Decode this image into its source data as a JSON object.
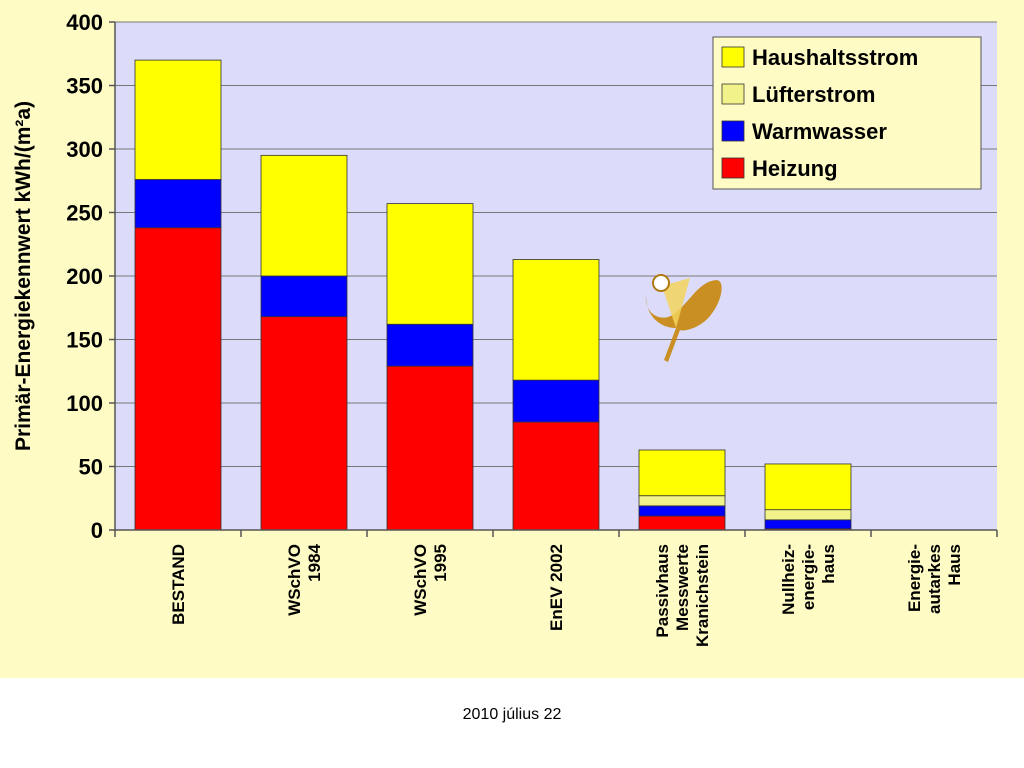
{
  "footer": {
    "date": "2010 július 22"
  },
  "colors": {
    "outer_background": "#FEFCC4",
    "plot_background": "#DCDCFA",
    "gridline": "#777777"
  },
  "icons": [
    "logo-mark"
  ],
  "chart_data": {
    "type": "bar",
    "stacked": true,
    "title": "",
    "xlabel": "",
    "ylabel": "Primär-Energiekennwert  kWh/(m²a)",
    "ylim": [
      0,
      400
    ],
    "yticks": [
      0,
      50,
      100,
      150,
      200,
      250,
      300,
      350,
      400
    ],
    "grid": true,
    "legend_position": "top-right",
    "categories": [
      [
        "BESTAND"
      ],
      [
        "WSchVO",
        "1984"
      ],
      [
        "WSchVO",
        "1995"
      ],
      [
        "EnEV 2002"
      ],
      [
        "Passivhaus",
        "Messwerte",
        "Kranichstein"
      ],
      [
        "Nullheiz-",
        "energie-",
        "haus"
      ],
      [
        "Energie-",
        "autarkes",
        "Haus"
      ]
    ],
    "series": [
      {
        "name": "Heizung",
        "color": "#FF0000",
        "values": [
          238,
          168,
          129,
          85,
          11,
          1,
          0
        ]
      },
      {
        "name": "Warmwasser",
        "color": "#0000FF",
        "values": [
          38,
          32,
          33,
          33,
          8,
          7,
          0
        ]
      },
      {
        "name": "Lüfterstrom",
        "color": "#F2F28A",
        "values": [
          0,
          0,
          0,
          0,
          8,
          8,
          0
        ]
      },
      {
        "name": "Haushaltsstrom",
        "color": "#FFFF00",
        "values": [
          94,
          95,
          95,
          95,
          36,
          36,
          0
        ]
      }
    ],
    "legend_order": [
      "Haushaltsstrom",
      "Lüfterstrom",
      "Warmwasser",
      "Heizung"
    ]
  }
}
